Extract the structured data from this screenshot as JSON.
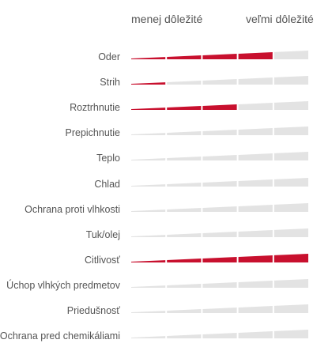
{
  "header": {
    "low_label": "menej dôležité",
    "high_label": "veľmi dôležité"
  },
  "segments_total": 5,
  "colors": {
    "active": "#c8102e",
    "inactive": "#e3e3e3"
  },
  "properties": [
    {
      "label": "Oder",
      "level": 4
    },
    {
      "label": "Strih",
      "level": 1
    },
    {
      "label": "Roztrhnutie",
      "level": 3
    },
    {
      "label": "Prepichnutie",
      "level": 0
    },
    {
      "label": "Teplo",
      "level": 0
    },
    {
      "label": "Chlad",
      "level": 0
    },
    {
      "label": "Ochrana proti vlhkosti",
      "level": 0
    },
    {
      "label": "Tuk/olej",
      "level": 0
    },
    {
      "label": "Citlivosť",
      "level": 5
    },
    {
      "label": "Úchop vlhkých predmetov",
      "level": 0
    },
    {
      "label": "Priedušnosť",
      "level": 0
    },
    {
      "label": "Ochrana pred chemikáliami",
      "level": 0
    }
  ]
}
